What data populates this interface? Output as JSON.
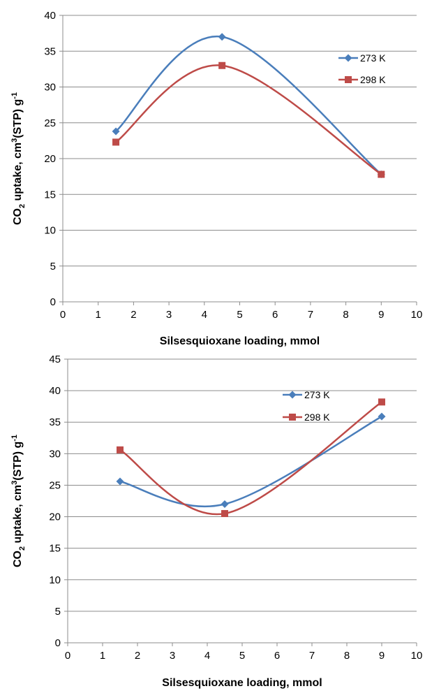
{
  "chart_data": [
    {
      "type": "line",
      "title": "",
      "xlabel": "Silsesquioxane loading, mmol",
      "ylabel": {
        "p1": "CO",
        "sub": "2",
        "p2": " uptake, cm",
        "sup": "3",
        "p3": "(STP) g",
        "sup2": "-1"
      },
      "xlim": [
        0,
        10
      ],
      "ylim": [
        0,
        40
      ],
      "x_ticks": [
        0,
        1,
        2,
        3,
        4,
        5,
        6,
        7,
        8,
        9,
        10
      ],
      "y_ticks": [
        0,
        5,
        10,
        15,
        20,
        25,
        30,
        35,
        40
      ],
      "grid": "horizontal",
      "legend_position": "right",
      "x": [
        1.5,
        4.5,
        9
      ],
      "series": [
        {
          "name": "273 K",
          "values": [
            23.8,
            37.0,
            17.8
          ],
          "color": "#4a7ebb",
          "marker": "diamond"
        },
        {
          "name": "298 K",
          "values": [
            22.3,
            33.0,
            17.8
          ],
          "color": "#be4b48",
          "marker": "square"
        }
      ]
    },
    {
      "type": "line",
      "title": "",
      "xlabel": "Silsesquioxane loading, mmol",
      "ylabel": {
        "p1": "CO",
        "sub": "2",
        "p2": " uptake, cm",
        "sup": "3",
        "p3": "(STP) g",
        "sup2": "-1"
      },
      "xlim": [
        0,
        10
      ],
      "ylim": [
        0,
        45
      ],
      "x_ticks": [
        0,
        1,
        2,
        3,
        4,
        5,
        6,
        7,
        8,
        9,
        10
      ],
      "y_ticks": [
        0,
        5,
        10,
        15,
        20,
        25,
        30,
        35,
        40,
        45
      ],
      "grid": "horizontal",
      "legend_position": "top-right",
      "x": [
        1.5,
        4.5,
        9
      ],
      "series": [
        {
          "name": "273 K",
          "values": [
            25.6,
            22.0,
            35.9
          ],
          "color": "#4a7ebb",
          "marker": "diamond"
        },
        {
          "name": "298 K",
          "values": [
            30.6,
            20.5,
            38.2
          ],
          "color": "#be4b48",
          "marker": "square"
        }
      ]
    }
  ]
}
